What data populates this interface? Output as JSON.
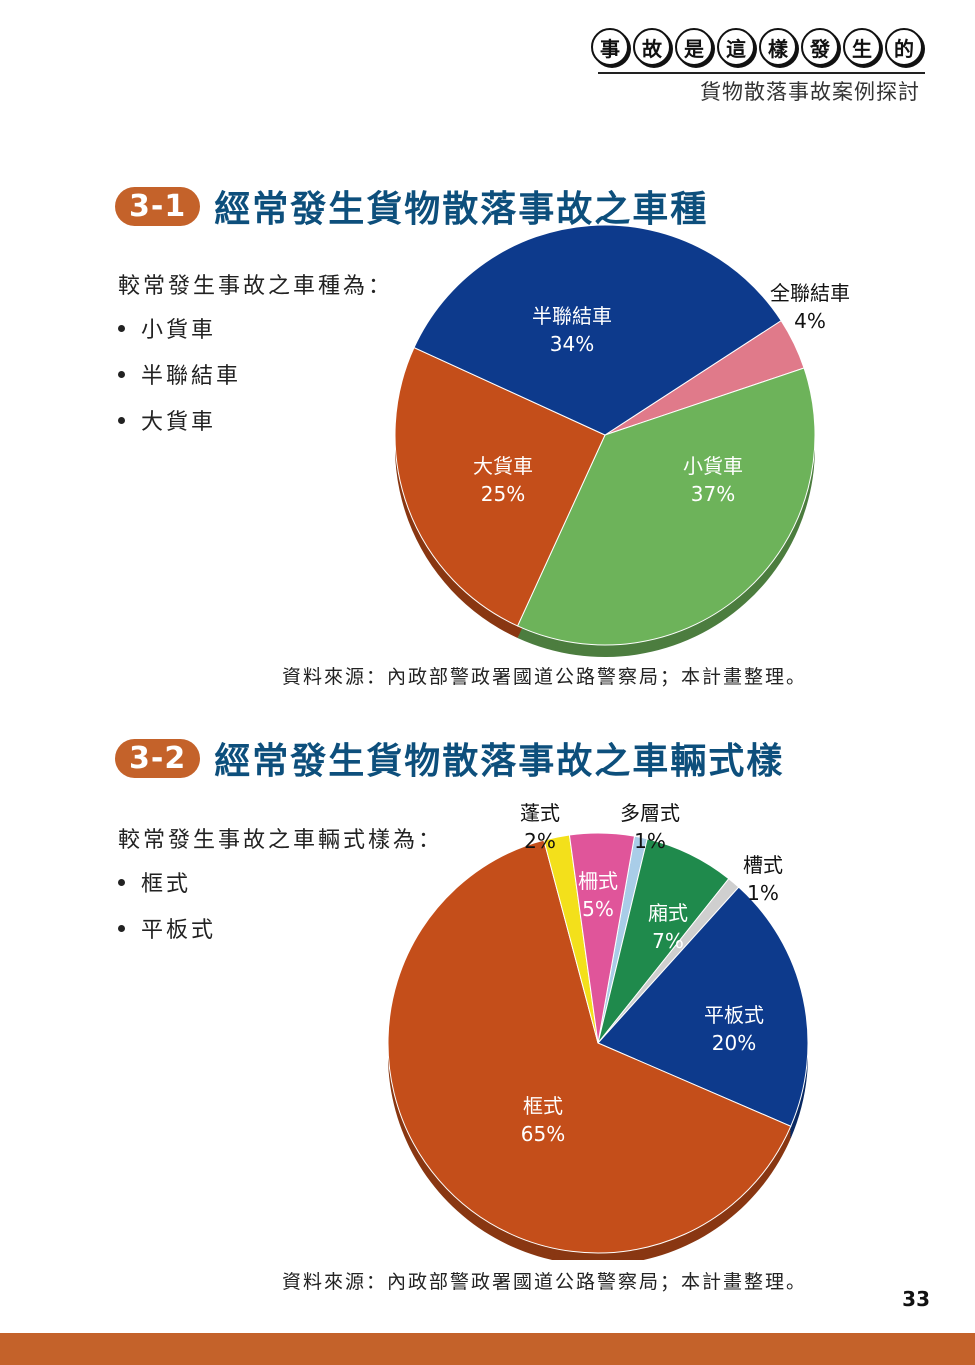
{
  "header": {
    "chars": [
      "事",
      "故",
      "是",
      "這",
      "樣",
      "發",
      "生",
      "的"
    ],
    "subtitle": "貨物散落事故案例探討"
  },
  "section1": {
    "badge": "3-1",
    "title": "經常發生貨物散落事故之車種",
    "lead": "較常發生事故之車種為：",
    "items": [
      "小貨車",
      "半聯結車",
      "大貨車"
    ],
    "source": "資料來源：內政部警政署國道公路警察局；本計畫整理。"
  },
  "section2": {
    "badge": "3-2",
    "title": "經常發生貨物散落事故之車輛式樣",
    "lead": "較常發生事故之車輛式樣為：",
    "items": [
      "框式",
      "平板式"
    ],
    "source": "資料來源：內政部警政署國道公路警察局；本計畫整理。"
  },
  "page_number": "33",
  "colors": {
    "accent": "#c4622a",
    "title": "#0d4f7c"
  },
  "chart_data": [
    {
      "type": "pie",
      "title": "",
      "slices": [
        {
          "label": "全聯結車",
          "value": 4,
          "pct": "4%",
          "color": "#e07a8a"
        },
        {
          "label": "小貨車",
          "value": 37,
          "pct": "37%",
          "color": "#6db35a"
        },
        {
          "label": "大貨車",
          "value": 25,
          "pct": "25%",
          "color": "#c44e1a"
        },
        {
          "label": "半聯結車",
          "value": 34,
          "pct": "34%",
          "color": "#0d3a8c"
        }
      ]
    },
    {
      "type": "pie",
      "title": "",
      "slices": [
        {
          "label": "多層式",
          "value": 1,
          "pct": "1%",
          "color": "#a9cde8"
        },
        {
          "label": "廂式",
          "value": 7,
          "pct": "7%",
          "color": "#1f8a4c"
        },
        {
          "label": "槽式",
          "value": 1,
          "pct": "1%",
          "color": "#cfcfcf"
        },
        {
          "label": "平板式",
          "value": 20,
          "pct": "20%",
          "color": "#0d3a8c"
        },
        {
          "label": "框式",
          "value": 65,
          "pct": "65%",
          "color": "#c44e1a"
        },
        {
          "label": "蓬式",
          "value": 2,
          "pct": "2%",
          "color": "#f3e01b"
        },
        {
          "label": "柵式",
          "value": 5,
          "pct": "5%",
          "color": "#e0559a"
        }
      ]
    }
  ]
}
